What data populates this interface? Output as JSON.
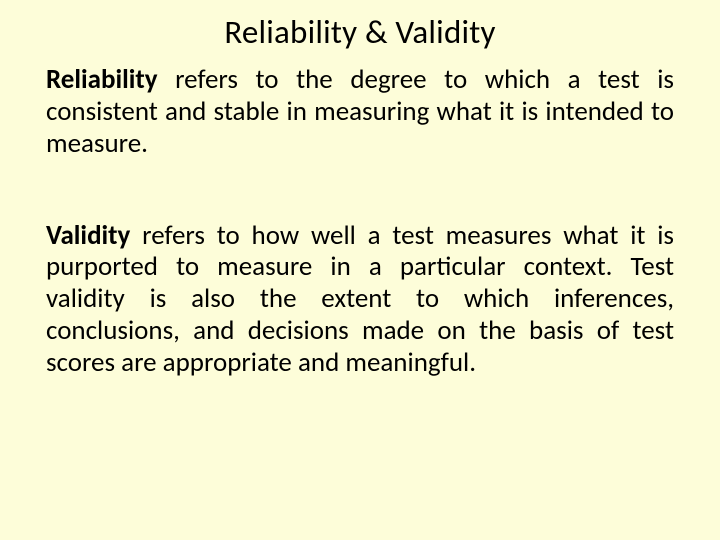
{
  "slide": {
    "background_color": "#fdfdd9",
    "text_color": "#000000",
    "font_family": "Calibri",
    "title": {
      "text": "Reliability & Validity",
      "fontsize": 33,
      "weight": 400,
      "align": "center"
    },
    "paragraphs": [
      {
        "term": "Reliability",
        "body": " refers to the degree to which a test is consistent and stable in measuring what it is intended to measure.",
        "fontsize": 27,
        "align": "justify",
        "term_weight": 700
      },
      {
        "term": "Validity",
        "body": " refers to how well a test measures what it is purported to measure in a particular context. Test validity is also the extent to which inferences, conclusions, and decisions made on the basis of test scores are appropriate and meaningful.",
        "fontsize": 27,
        "align": "justify",
        "term_weight": 700
      }
    ]
  }
}
